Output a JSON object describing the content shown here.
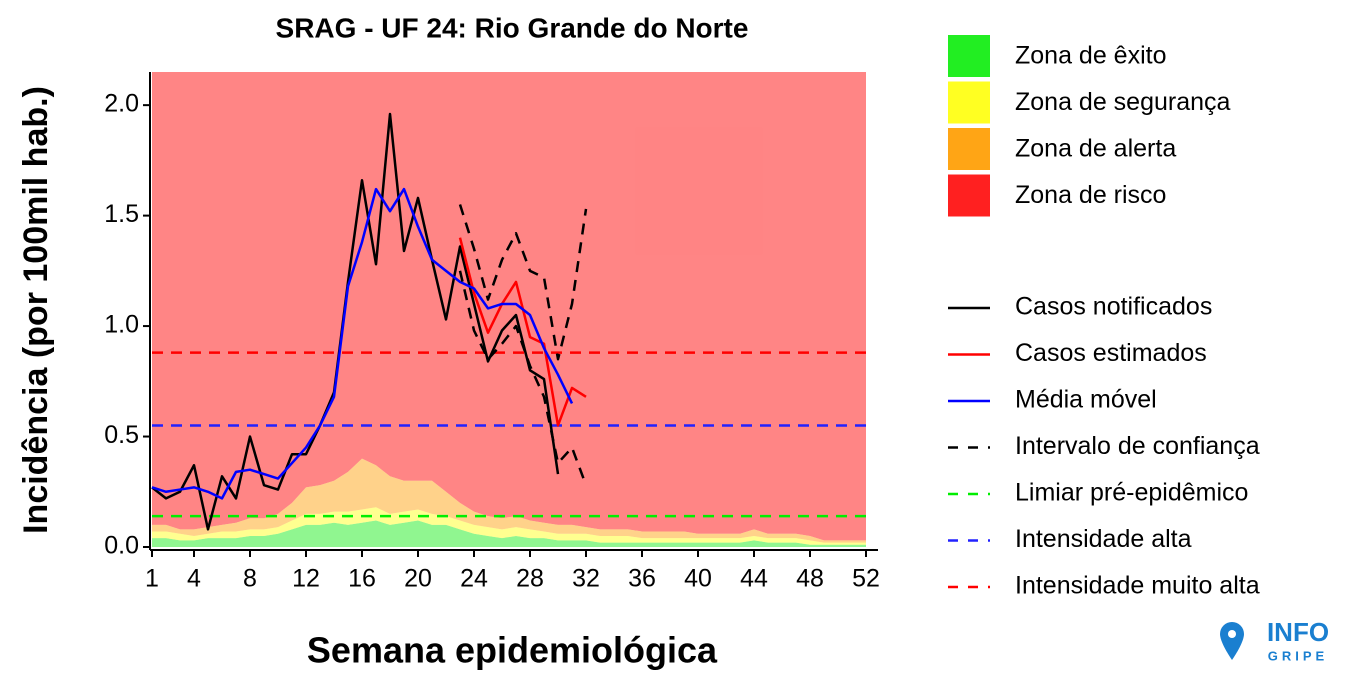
{
  "chart_data": {
    "type": "line",
    "title": "SRAG - UF 24: Rio Grande do Norte",
    "x_label": "Semana epidemiológica",
    "y_label": "Incidência (por 100mil hab.)",
    "x": [
      1,
      2,
      3,
      4,
      5,
      6,
      7,
      8,
      9,
      10,
      11,
      12,
      13,
      14,
      15,
      16,
      17,
      18,
      19,
      20,
      21,
      22,
      23,
      24,
      25,
      26,
      27,
      28,
      29,
      30,
      31,
      32,
      33,
      34,
      35,
      36,
      37,
      38,
      39,
      40,
      41,
      42,
      43,
      44,
      45,
      46,
      47,
      48,
      49,
      50,
      51,
      52
    ],
    "xlim": [
      1,
      52
    ],
    "xticks": [
      1,
      4,
      8,
      12,
      16,
      20,
      24,
      28,
      32,
      36,
      40,
      44,
      48,
      52
    ],
    "ylim": [
      0,
      2.15
    ],
    "yticks": [
      {
        "value": 0,
        "label": "0.0"
      },
      0.5,
      {
        "value": 1,
        "label": "1.0"
      },
      1.5,
      {
        "value": 2,
        "label": "2.0"
      }
    ],
    "zones": [
      {
        "name": "Zona de êxito",
        "color": "#22ee22",
        "values": [
          0.04,
          0.04,
          0.03,
          0.03,
          0.04,
          0.04,
          0.04,
          0.05,
          0.05,
          0.06,
          0.08,
          0.1,
          0.1,
          0.11,
          0.1,
          0.11,
          0.12,
          0.1,
          0.11,
          0.12,
          0.1,
          0.1,
          0.08,
          0.06,
          0.05,
          0.04,
          0.05,
          0.04,
          0.04,
          0.03,
          0.03,
          0.03,
          0.02,
          0.02,
          0.02,
          0.02,
          0.02,
          0.02,
          0.02,
          0.02,
          0.02,
          0.02,
          0.02,
          0.03,
          0.02,
          0.02,
          0.02,
          0.01,
          0.01,
          0.01,
          0.01,
          0.01
        ]
      },
      {
        "name": "Zona de segurança",
        "color": "#ffff22",
        "values": [
          0.03,
          0.03,
          0.03,
          0.02,
          0.02,
          0.03,
          0.03,
          0.03,
          0.03,
          0.03,
          0.04,
          0.05,
          0.05,
          0.05,
          0.06,
          0.06,
          0.06,
          0.05,
          0.05,
          0.05,
          0.05,
          0.04,
          0.04,
          0.04,
          0.04,
          0.04,
          0.04,
          0.04,
          0.03,
          0.03,
          0.03,
          0.03,
          0.03,
          0.03,
          0.03,
          0.02,
          0.02,
          0.02,
          0.02,
          0.02,
          0.02,
          0.02,
          0.02,
          0.02,
          0.02,
          0.02,
          0.02,
          0.02,
          0.01,
          0.01,
          0.01,
          0.01
        ]
      },
      {
        "name": "Zona de alerta",
        "color": "#ffa515",
        "values": [
          0.03,
          0.03,
          0.02,
          0.03,
          0.03,
          0.03,
          0.04,
          0.05,
          0.05,
          0.06,
          0.08,
          0.12,
          0.13,
          0.14,
          0.18,
          0.23,
          0.19,
          0.17,
          0.14,
          0.13,
          0.15,
          0.11,
          0.08,
          0.06,
          0.05,
          0.05,
          0.05,
          0.04,
          0.04,
          0.04,
          0.04,
          0.03,
          0.03,
          0.03,
          0.03,
          0.03,
          0.03,
          0.03,
          0.03,
          0.02,
          0.02,
          0.02,
          0.02,
          0.03,
          0.02,
          0.02,
          0.02,
          0.02,
          0.01,
          0.01,
          0.01,
          0.01
        ]
      },
      {
        "name": "Zona de risco",
        "color": "#ff2020"
      }
    ],
    "series": [
      {
        "name": "Casos notificados",
        "color": "#000000",
        "dash": false,
        "values": [
          0.27,
          0.22,
          0.25,
          0.37,
          0.08,
          0.32,
          0.22,
          0.5,
          0.28,
          0.26,
          0.42,
          0.42,
          0.55,
          0.7,
          1.2,
          1.66,
          1.28,
          1.96,
          1.34,
          1.58,
          1.3,
          1.03,
          1.36,
          1.1,
          0.84,
          0.98,
          1.05,
          0.8,
          0.76,
          0.33,
          null,
          null,
          null,
          null,
          null,
          null,
          null,
          null,
          null,
          null,
          null,
          null,
          null,
          null,
          null,
          null,
          null,
          null,
          null,
          null,
          null,
          null
        ]
      },
      {
        "name": "Casos estimados",
        "color": "#ff0000",
        "dash": false,
        "values": [
          null,
          null,
          null,
          null,
          null,
          null,
          null,
          null,
          null,
          null,
          null,
          null,
          null,
          null,
          null,
          null,
          null,
          null,
          null,
          null,
          null,
          null,
          1.4,
          1.15,
          0.97,
          1.1,
          1.2,
          0.95,
          0.92,
          0.55,
          0.72,
          0.68,
          null,
          null,
          null,
          null,
          null,
          null,
          null,
          null,
          null,
          null,
          null,
          null,
          null,
          null,
          null,
          null,
          null,
          null,
          null,
          null
        ]
      },
      {
        "name": "Média móvel",
        "color": "#0000ff",
        "dash": false,
        "values": [
          0.27,
          0.25,
          0.26,
          0.27,
          0.25,
          0.22,
          0.34,
          0.35,
          0.33,
          0.31,
          0.38,
          0.45,
          0.55,
          0.68,
          1.18,
          1.38,
          1.62,
          1.52,
          1.62,
          1.45,
          1.3,
          1.25,
          1.2,
          1.17,
          1.08,
          1.1,
          1.1,
          1.05,
          0.9,
          0.78,
          0.65,
          null,
          null,
          null,
          null,
          null,
          null,
          null,
          null,
          null,
          null,
          null,
          null,
          null,
          null,
          null,
          null,
          null,
          null,
          null,
          null,
          null
        ]
      },
      {
        "name": "Intervalo de confiança",
        "color": "#000000",
        "dash": true,
        "upper": [
          null,
          null,
          null,
          null,
          null,
          null,
          null,
          null,
          null,
          null,
          null,
          null,
          null,
          null,
          null,
          null,
          null,
          null,
          null,
          null,
          null,
          null,
          1.55,
          1.35,
          1.12,
          1.3,
          1.42,
          1.25,
          1.22,
          0.85,
          1.1,
          1.53,
          null,
          null,
          null,
          null,
          null,
          null,
          null,
          null,
          null,
          null,
          null,
          null,
          null,
          null,
          null,
          null,
          null,
          null,
          null,
          null
        ],
        "lower": [
          null,
          null,
          null,
          null,
          null,
          null,
          null,
          null,
          null,
          null,
          null,
          null,
          null,
          null,
          null,
          null,
          null,
          null,
          null,
          null,
          null,
          null,
          1.25,
          0.98,
          0.85,
          0.92,
          1.0,
          0.82,
          0.68,
          0.38,
          0.45,
          0.28,
          null,
          null,
          null,
          null,
          null,
          null,
          null,
          null,
          null,
          null,
          null,
          null,
          null,
          null,
          null,
          null,
          null,
          null,
          null,
          null
        ]
      }
    ],
    "reference_lines": [
      {
        "name": "Limiar pré-epidêmico",
        "color": "#00ee00",
        "value": 0.14
      },
      {
        "name": "Intensidade alta",
        "color": "#2222ff",
        "value": 0.55
      },
      {
        "name": "Intensidade muito alta",
        "color": "#ff0000",
        "value": 0.88
      }
    ]
  },
  "logo": {
    "line1": "INFO",
    "line2": "GRIPE"
  }
}
